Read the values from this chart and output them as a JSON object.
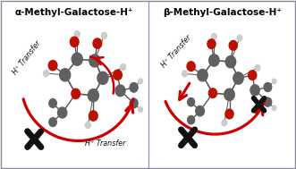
{
  "left_title": "α-Methyl-Galactose-H⁺",
  "right_title": "β-Methyl-Galactose-H⁺",
  "h_transfer_label": "H⁺ Transfer",
  "bg_color": "#ffffff",
  "border_color": "#888899",
  "divider_color": "#8899bb",
  "arrow_color": "#cc0000",
  "title_fontsize": 7.5,
  "label_fontsize": 5.8,
  "cross_color": "#111111",
  "fig_width": 3.31,
  "fig_height": 1.89,
  "c_color": "#606060",
  "o_color": "#bb1100",
  "h_color": "#cccccc",
  "bond_color": "#555555"
}
